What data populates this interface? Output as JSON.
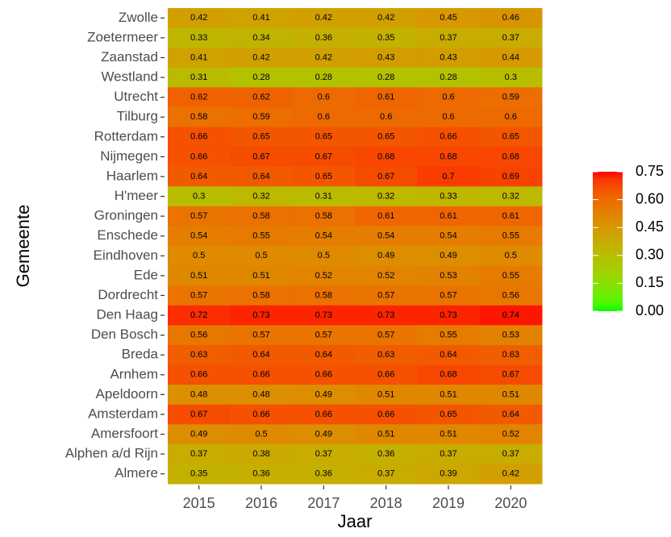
{
  "chart_data": {
    "type": "heatmap",
    "xlabel": "Jaar",
    "ylabel": "Gemeente",
    "x": [
      "2015",
      "2016",
      "2017",
      "2018",
      "2019",
      "2020"
    ],
    "y": [
      "Zwolle",
      "Zoetermeer",
      "Zaanstad",
      "Westland",
      "Utrecht",
      "Tilburg",
      "Rotterdam",
      "Nijmegen",
      "Haarlem",
      "H'meer",
      "Groningen",
      "Enschede",
      "Eindhoven",
      "Ede",
      "Dordrecht",
      "Den Haag",
      "Den Bosch",
      "Breda",
      "Arnhem",
      "Apeldoorn",
      "Amsterdam",
      "Amersfoort",
      "Alphen a/d Rijn",
      "Almere"
    ],
    "values": [
      [
        0.42,
        0.41,
        0.42,
        0.42,
        0.45,
        0.46
      ],
      [
        0.33,
        0.34,
        0.36,
        0.35,
        0.37,
        0.37
      ],
      [
        0.41,
        0.42,
        0.42,
        0.43,
        0.43,
        0.44
      ],
      [
        0.31,
        0.28,
        0.28,
        0.28,
        0.28,
        0.3
      ],
      [
        0.62,
        0.62,
        0.6,
        0.61,
        0.6,
        0.59
      ],
      [
        0.58,
        0.59,
        0.6,
        0.6,
        0.6,
        0.6
      ],
      [
        0.66,
        0.65,
        0.65,
        0.65,
        0.66,
        0.65
      ],
      [
        0.66,
        0.67,
        0.67,
        0.68,
        0.68,
        0.68
      ],
      [
        0.64,
        0.64,
        0.65,
        0.67,
        0.7,
        0.69
      ],
      [
        0.3,
        0.32,
        0.31,
        0.32,
        0.33,
        0.32
      ],
      [
        0.57,
        0.58,
        0.58,
        0.61,
        0.61,
        0.61
      ],
      [
        0.54,
        0.55,
        0.54,
        0.54,
        0.54,
        0.55
      ],
      [
        0.5,
        0.5,
        0.5,
        0.49,
        0.49,
        0.5
      ],
      [
        0.51,
        0.51,
        0.52,
        0.52,
        0.53,
        0.55
      ],
      [
        0.57,
        0.58,
        0.58,
        0.57,
        0.57,
        0.56
      ],
      [
        0.72,
        0.73,
        0.73,
        0.73,
        0.73,
        0.74
      ],
      [
        0.56,
        0.57,
        0.57,
        0.57,
        0.55,
        0.53
      ],
      [
        0.63,
        0.64,
        0.64,
        0.63,
        0.64,
        0.63
      ],
      [
        0.66,
        0.66,
        0.66,
        0.66,
        0.68,
        0.67
      ],
      [
        0.48,
        0.48,
        0.49,
        0.51,
        0.51,
        0.51
      ],
      [
        0.67,
        0.66,
        0.66,
        0.66,
        0.65,
        0.64
      ],
      [
        0.49,
        0.5,
        0.49,
        0.51,
        0.51,
        0.52
      ],
      [
        0.37,
        0.38,
        0.37,
        0.36,
        0.37,
        0.37
      ],
      [
        0.35,
        0.36,
        0.36,
        0.37,
        0.39,
        0.42
      ]
    ],
    "color_low": "#00ff00",
    "color_high": "#ff0000",
    "clim": [
      0,
      0.75
    ],
    "cticks": [
      {
        "value": 0,
        "label": "0.00"
      },
      0.15,
      {
        "value": 0.3,
        "label": "0.30"
      },
      0.45,
      {
        "value": 0.6,
        "label": "0.60"
      },
      0.75
    ]
  }
}
